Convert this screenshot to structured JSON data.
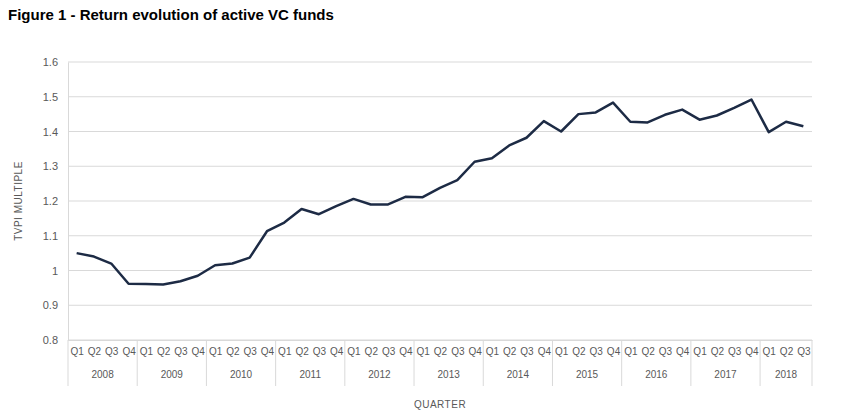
{
  "chart_data": {
    "type": "line",
    "title": "Figure 1 - Return evolution of active VC funds",
    "x_label": "QUARTER",
    "y_label": "TVPI MULTIPLE",
    "categories": [
      "Q1",
      "Q2",
      "Q3",
      "Q4",
      "Q1",
      "Q2",
      "Q3",
      "Q4",
      "Q1",
      "Q2",
      "Q3",
      "Q4",
      "Q1",
      "Q2",
      "Q3",
      "Q4",
      "Q1",
      "Q2",
      "Q3",
      "Q4",
      "Q1",
      "Q2",
      "Q3",
      "Q4",
      "Q1",
      "Q2",
      "Q3",
      "Q4",
      "Q1",
      "Q2",
      "Q3",
      "Q4",
      "Q1",
      "Q2",
      "Q3",
      "Q4",
      "Q1",
      "Q2",
      "Q3",
      "Q4",
      "Q1",
      "Q2",
      "Q3"
    ],
    "category_groups": [
      "2008",
      "2009",
      "2010",
      "2011",
      "2012",
      "2013",
      "2014",
      "2015",
      "2016",
      "2017",
      "2018"
    ],
    "values": [
      1.05,
      1.04,
      1.02,
      0.962,
      0.961,
      0.96,
      0.969,
      0.985,
      1.015,
      1.02,
      1.037,
      1.113,
      1.138,
      1.177,
      1.162,
      1.185,
      1.206,
      1.19,
      1.19,
      1.212,
      1.211,
      1.238,
      1.26,
      1.313,
      1.323,
      1.36,
      1.382,
      1.43,
      1.4,
      1.45,
      1.455,
      1.483,
      1.428,
      1.426,
      1.448,
      1.463,
      1.434,
      1.446,
      1.468,
      1.492,
      1.398,
      1.428,
      1.415
    ],
    "color": "#1d2b45",
    "ylim": [
      0.8,
      1.6
    ],
    "yticks": [
      0.8,
      0.9,
      1,
      1.1,
      1.2,
      1.3,
      1.4,
      1.5,
      1.6
    ],
    "grid": true
  }
}
